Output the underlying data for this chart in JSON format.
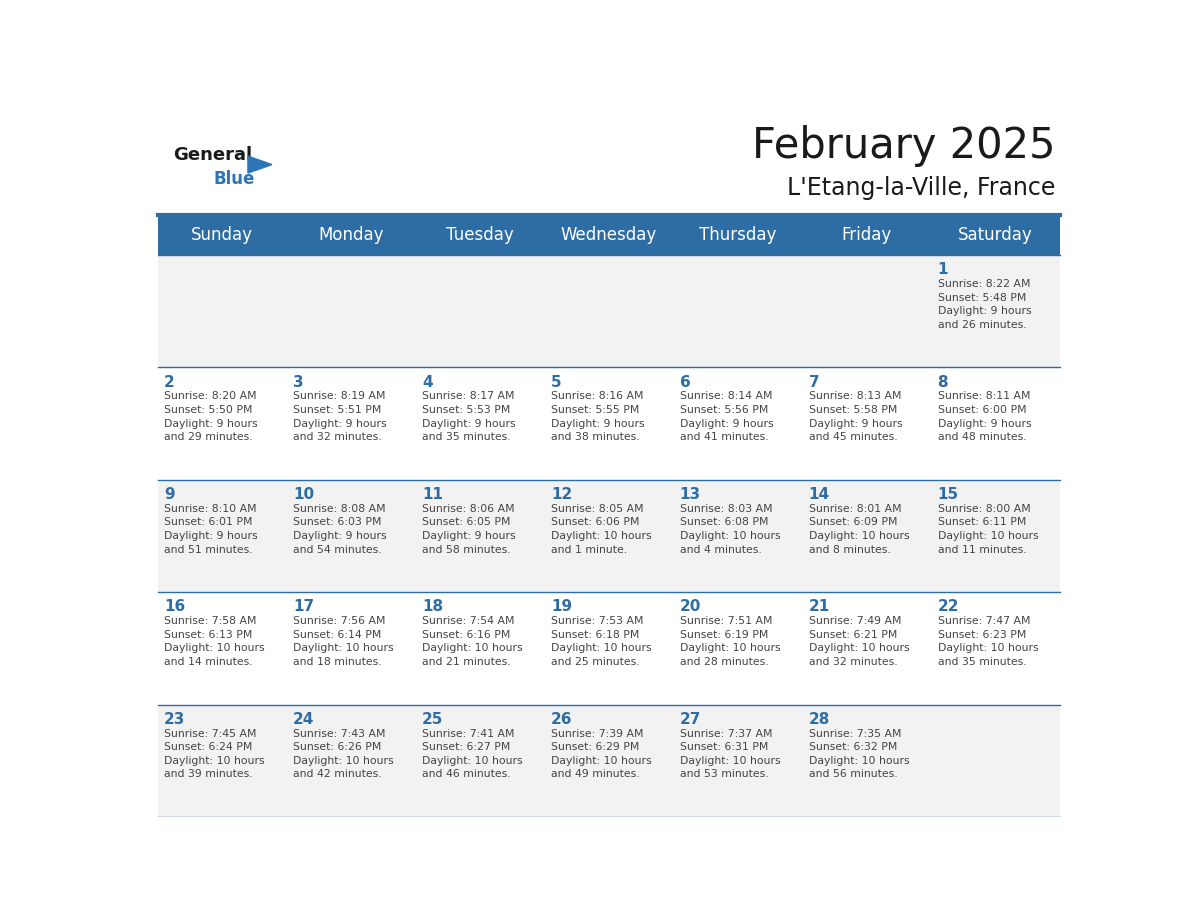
{
  "title": "February 2025",
  "subtitle": "L'Etang-la-Ville, France",
  "days_of_week": [
    "Sunday",
    "Monday",
    "Tuesday",
    "Wednesday",
    "Thursday",
    "Friday",
    "Saturday"
  ],
  "header_bg": "#2E6DA4",
  "header_text": "#FFFFFF",
  "cell_bg_even": "#F2F2F2",
  "cell_bg_odd": "#FFFFFF",
  "border_color": "#2E6DA4",
  "day_number_color": "#2E6DA4",
  "text_color": "#444444",
  "logo_general_color": "#1a1a1a",
  "logo_blue_color": "#2E75B6",
  "weeks": [
    {
      "days": [
        {
          "date": "",
          "info": ""
        },
        {
          "date": "",
          "info": ""
        },
        {
          "date": "",
          "info": ""
        },
        {
          "date": "",
          "info": ""
        },
        {
          "date": "",
          "info": ""
        },
        {
          "date": "",
          "info": ""
        },
        {
          "date": "1",
          "info": "Sunrise: 8:22 AM\nSunset: 5:48 PM\nDaylight: 9 hours\nand 26 minutes."
        }
      ]
    },
    {
      "days": [
        {
          "date": "2",
          "info": "Sunrise: 8:20 AM\nSunset: 5:50 PM\nDaylight: 9 hours\nand 29 minutes."
        },
        {
          "date": "3",
          "info": "Sunrise: 8:19 AM\nSunset: 5:51 PM\nDaylight: 9 hours\nand 32 minutes."
        },
        {
          "date": "4",
          "info": "Sunrise: 8:17 AM\nSunset: 5:53 PM\nDaylight: 9 hours\nand 35 minutes."
        },
        {
          "date": "5",
          "info": "Sunrise: 8:16 AM\nSunset: 5:55 PM\nDaylight: 9 hours\nand 38 minutes."
        },
        {
          "date": "6",
          "info": "Sunrise: 8:14 AM\nSunset: 5:56 PM\nDaylight: 9 hours\nand 41 minutes."
        },
        {
          "date": "7",
          "info": "Sunrise: 8:13 AM\nSunset: 5:58 PM\nDaylight: 9 hours\nand 45 minutes."
        },
        {
          "date": "8",
          "info": "Sunrise: 8:11 AM\nSunset: 6:00 PM\nDaylight: 9 hours\nand 48 minutes."
        }
      ]
    },
    {
      "days": [
        {
          "date": "9",
          "info": "Sunrise: 8:10 AM\nSunset: 6:01 PM\nDaylight: 9 hours\nand 51 minutes."
        },
        {
          "date": "10",
          "info": "Sunrise: 8:08 AM\nSunset: 6:03 PM\nDaylight: 9 hours\nand 54 minutes."
        },
        {
          "date": "11",
          "info": "Sunrise: 8:06 AM\nSunset: 6:05 PM\nDaylight: 9 hours\nand 58 minutes."
        },
        {
          "date": "12",
          "info": "Sunrise: 8:05 AM\nSunset: 6:06 PM\nDaylight: 10 hours\nand 1 minute."
        },
        {
          "date": "13",
          "info": "Sunrise: 8:03 AM\nSunset: 6:08 PM\nDaylight: 10 hours\nand 4 minutes."
        },
        {
          "date": "14",
          "info": "Sunrise: 8:01 AM\nSunset: 6:09 PM\nDaylight: 10 hours\nand 8 minutes."
        },
        {
          "date": "15",
          "info": "Sunrise: 8:00 AM\nSunset: 6:11 PM\nDaylight: 10 hours\nand 11 minutes."
        }
      ]
    },
    {
      "days": [
        {
          "date": "16",
          "info": "Sunrise: 7:58 AM\nSunset: 6:13 PM\nDaylight: 10 hours\nand 14 minutes."
        },
        {
          "date": "17",
          "info": "Sunrise: 7:56 AM\nSunset: 6:14 PM\nDaylight: 10 hours\nand 18 minutes."
        },
        {
          "date": "18",
          "info": "Sunrise: 7:54 AM\nSunset: 6:16 PM\nDaylight: 10 hours\nand 21 minutes."
        },
        {
          "date": "19",
          "info": "Sunrise: 7:53 AM\nSunset: 6:18 PM\nDaylight: 10 hours\nand 25 minutes."
        },
        {
          "date": "20",
          "info": "Sunrise: 7:51 AM\nSunset: 6:19 PM\nDaylight: 10 hours\nand 28 minutes."
        },
        {
          "date": "21",
          "info": "Sunrise: 7:49 AM\nSunset: 6:21 PM\nDaylight: 10 hours\nand 32 minutes."
        },
        {
          "date": "22",
          "info": "Sunrise: 7:47 AM\nSunset: 6:23 PM\nDaylight: 10 hours\nand 35 minutes."
        }
      ]
    },
    {
      "days": [
        {
          "date": "23",
          "info": "Sunrise: 7:45 AM\nSunset: 6:24 PM\nDaylight: 10 hours\nand 39 minutes."
        },
        {
          "date": "24",
          "info": "Sunrise: 7:43 AM\nSunset: 6:26 PM\nDaylight: 10 hours\nand 42 minutes."
        },
        {
          "date": "25",
          "info": "Sunrise: 7:41 AM\nSunset: 6:27 PM\nDaylight: 10 hours\nand 46 minutes."
        },
        {
          "date": "26",
          "info": "Sunrise: 7:39 AM\nSunset: 6:29 PM\nDaylight: 10 hours\nand 49 minutes."
        },
        {
          "date": "27",
          "info": "Sunrise: 7:37 AM\nSunset: 6:31 PM\nDaylight: 10 hours\nand 53 minutes."
        },
        {
          "date": "28",
          "info": "Sunrise: 7:35 AM\nSunset: 6:32 PM\nDaylight: 10 hours\nand 56 minutes."
        },
        {
          "date": "",
          "info": ""
        }
      ]
    }
  ]
}
